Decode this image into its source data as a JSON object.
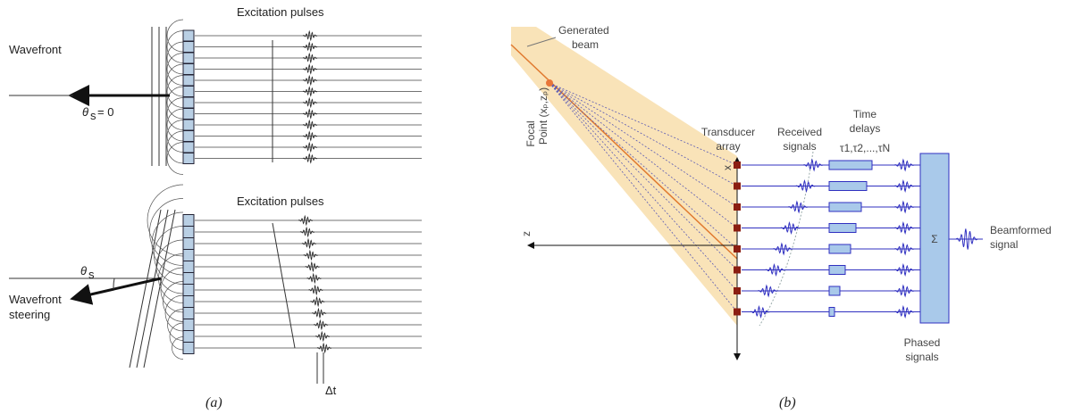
{
  "panel_a": {
    "top": {
      "title": "Excitation pulses",
      "wavefront": "Wavefront",
      "angle": {
        "symbol": "θ",
        "subscript": "s",
        "suffix": "= 0"
      }
    },
    "bottom": {
      "title": "Excitation pulses",
      "wavefront": [
        "Wavefront",
        "steering"
      ],
      "angle": {
        "symbol": "θ",
        "subscript": "s"
      },
      "delay": "Δt"
    },
    "caption": "(a)"
  },
  "panel_b": {
    "generated_beam": [
      "Generated",
      "beam"
    ],
    "focal_point": [
      "Focal",
      "Point (xₚ,zₚ)"
    ],
    "axis_x": "x",
    "axis_z": "z",
    "transducer": [
      "Transducer",
      "array"
    ],
    "received": [
      "Received",
      "signals"
    ],
    "time_delays": [
      "Time",
      "delays"
    ],
    "delay_symbols": "τ1,τ2,...,τN",
    "sum": "Σ",
    "phased": [
      "Phased",
      "signals"
    ],
    "beamformed": [
      "Beamformed",
      "signal"
    ],
    "caption": "(b)"
  }
}
